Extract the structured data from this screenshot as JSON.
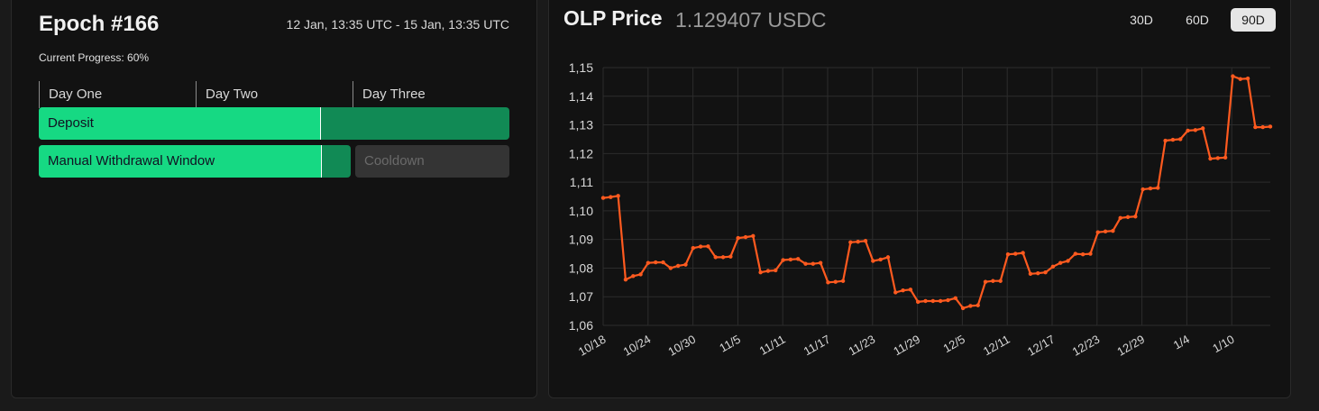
{
  "epoch": {
    "title": "Epoch #166",
    "range": "12 Jan, 13:35 UTC - 15 Jan, 13:35 UTC",
    "progress_label": "Current Progress: 60%",
    "progress": 0.6,
    "days": [
      "Day One",
      "Day Two",
      "Day Three"
    ],
    "deposit_label": "Deposit",
    "withdrawal_label": "Manual Withdrawal Window",
    "cooldown_label": "Cooldown"
  },
  "price": {
    "label": "OLP Price",
    "value": "1.129407 USDC",
    "ranges": [
      "30D",
      "60D",
      "90D"
    ],
    "active_range": "90D"
  },
  "colors": {
    "line": "#ff5a1f",
    "green": "#16d983",
    "green_dark": "#118a55"
  },
  "chart_data": {
    "type": "line",
    "x_tick_labels": [
      "10/18",
      "10/24",
      "10/30",
      "11/5",
      "11/11",
      "11/17",
      "11/23",
      "11/29",
      "12/5",
      "12/11",
      "12/17",
      "12/23",
      "12/29",
      "1/4",
      "1/10"
    ],
    "y_tick_labels": [
      "1,06",
      "1,07",
      "1,08",
      "1,09",
      "1,10",
      "1,11",
      "1,12",
      "1,13",
      "1,14",
      "1,15"
    ],
    "ylim": [
      1.06,
      1.15
    ],
    "grid": true,
    "series": [
      {
        "values": [
          1.1045,
          1.1048,
          1.1052,
          1.076,
          1.0772,
          1.0778,
          1.0818,
          1.082,
          1.082,
          1.08,
          1.0808,
          1.0812,
          1.087,
          1.0875,
          1.0876,
          1.0838,
          1.0838,
          1.084,
          1.0905,
          1.0908,
          1.0912,
          1.0785,
          1.079,
          1.0792,
          1.0828,
          1.083,
          1.0832,
          1.0815,
          1.0815,
          1.0818,
          1.075,
          1.0752,
          1.0755,
          1.089,
          1.0892,
          1.0895,
          1.0825,
          1.083,
          1.0838,
          1.0715,
          1.0722,
          1.0725,
          1.0682,
          1.0685,
          1.0685,
          1.0685,
          1.0688,
          1.0695,
          1.066,
          1.0668,
          1.067,
          1.0752,
          1.0755,
          1.0755,
          1.0848,
          1.085,
          1.0853,
          1.078,
          1.0782,
          1.0785,
          1.0805,
          1.0818,
          1.0825,
          1.085,
          1.0848,
          1.085,
          1.0925,
          1.0928,
          1.093,
          1.0975,
          1.0978,
          1.098,
          1.1075,
          1.1078,
          1.108,
          1.1245,
          1.1248,
          1.125,
          1.128,
          1.1282,
          1.1288,
          1.1182,
          1.1184,
          1.1186,
          1.147,
          1.146,
          1.1462,
          1.1292,
          1.1292,
          1.1294
        ]
      }
    ]
  }
}
